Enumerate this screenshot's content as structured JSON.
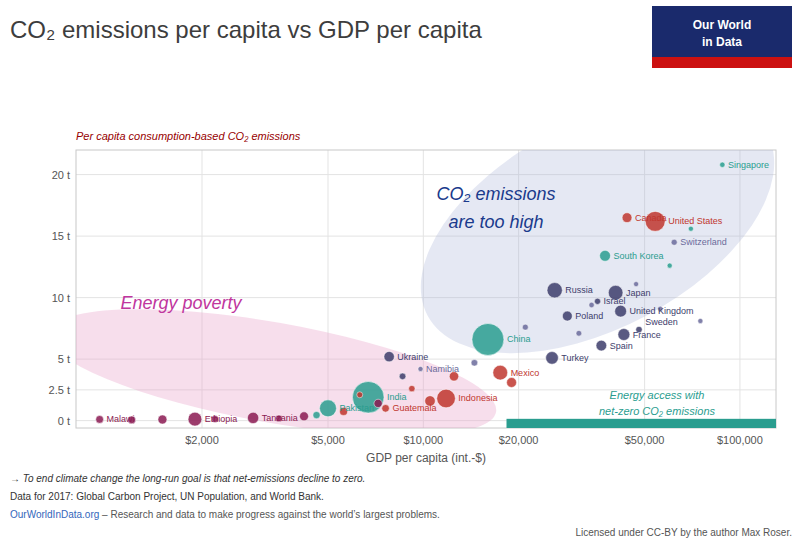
{
  "chart_data": {
    "type": "scatter",
    "title": "CO₂ emissions per capita vs GDP per capita",
    "x_label": "GDP per capita (int.-$)",
    "y_label": "Per capita consumption-based CO₂ emissions",
    "annotations": [
      "Energy poverty",
      "CO₂ emissions",
      "are too high",
      "Energy access with",
      "net-zero CO₂ emissions",
      "Our World",
      "in Data",
      "→ To end climate change the long-run goal is that net-emissions decline to zero.",
      "Data for 2017: Global Carbon Project, UN Population, and World Bank.",
      "OurWorldInData.org",
      " – Research and data to make progress against the world’s largest problems.",
      "Licensed under CC-BY by the author Max Roser."
    ],
    "log": "x",
    "grid": true,
    "xlim": [
      800,
      130000
    ],
    "ylim": [
      -0.6,
      22.0
    ],
    "xticks": [
      {
        "value": 2000,
        "label": "$2,000"
      },
      {
        "value": 5000,
        "label": "$5,000"
      },
      {
        "value": 10000,
        "label": "$10,000"
      },
      {
        "value": 20000,
        "label": "$20,000"
      },
      {
        "value": 50000,
        "label": "$50,000"
      },
      {
        "value": 100000,
        "label": "$100,000"
      }
    ],
    "yticks": [
      {
        "value": 0,
        "label": "0 t"
      },
      {
        "value": 2.5,
        "label": "2.5 t"
      },
      {
        "value": 5,
        "label": "5 t"
      },
      {
        "value": 10,
        "label": "10 t"
      },
      {
        "value": 15,
        "label": "15 t"
      },
      {
        "value": 20,
        "label": "20 t"
      }
    ],
    "x": [
      950,
      1900,
      2900,
      5000,
      6700,
      7800,
      9800,
      7600,
      11800,
      16000,
      17500,
      26000,
      25500,
      28500,
      35500,
      37500,
      40500,
      42000,
      43000,
      36500,
      48000,
      62000,
      44000,
      54000,
      88000,
      3500,
      4200,
      4600,
      5600,
      7200,
      9200,
      10500,
      12500,
      14500,
      19000,
      21000,
      31000,
      34000,
      47000,
      56000,
      60000,
      70000,
      75000,
      1200,
      1500,
      2200,
      6300,
      8600
    ],
    "values": [
      0.1,
      0.12,
      0.22,
      1.0,
      1.9,
      5.2,
      4.2,
      1.0,
      1.8,
      6.6,
      3.9,
      10.6,
      5.1,
      8.5,
      9.7,
      13.4,
      10.4,
      8.9,
      7.0,
      6.1,
      7.4,
      14.5,
      16.5,
      16.2,
      20.8,
      0.18,
      0.35,
      0.45,
      0.75,
      1.4,
      2.6,
      1.6,
      3.6,
      4.7,
      3.1,
      7.6,
      7.1,
      9.4,
      11.1,
      9.1,
      12.6,
      15.6,
      8.1,
      0.06,
      0.09,
      0.13,
      2.1,
      3.6
    ],
    "sizes": [
      18,
      105,
      57,
      197,
      1339,
      44,
      2.5,
      17,
      264,
      1390,
      129,
      145,
      80,
      38,
      9,
      51,
      127,
      66,
      67,
      47,
      10,
      8.5,
      37,
      326,
      5.6,
      12,
      28,
      15,
      20,
      22,
      10,
      45,
      32,
      11,
      38,
      8,
      7,
      6,
      5,
      4,
      3,
      4,
      3,
      18,
      28,
      13,
      8,
      11
    ],
    "colors": [
      "#8B1A52",
      "#8B1A52",
      "#8B1A52",
      "#2a9d8f",
      "#2a9d8f",
      "#3d3d6b",
      "#6b6b9b",
      "#c0362e",
      "#c0362e",
      "#2a9d8f",
      "#c0362e",
      "#3d3d6b",
      "#3d3d6b",
      "#3d3d6b",
      "#3d3d6b",
      "#2a9d8f",
      "#3d3d6b",
      "#3d3d6b",
      "#3d3d6b",
      "#3d3d6b",
      "#3d3d6b",
      "#6b6b9b",
      "#c0362e",
      "#c0362e",
      "#2a9d8f",
      "#8B1A52",
      "#8B1A52",
      "#2a9d8f",
      "#c0362e",
      "#8B1A52",
      "#c0362e",
      "#c0362e",
      "#c0362e",
      "#6b6b9b",
      "#c0362e",
      "#6b6b9b",
      "#6b6b9b",
      "#6b6b9b",
      "#6b6b9b",
      "#6b6b9b",
      "#2a9d8f",
      "#2a9d8f",
      "#6b6b9b",
      "#8B1A52",
      "#8B1A52",
      "#8B1A52",
      "#c0362e",
      "#3d3d6b"
    ],
    "labels": [
      "Malawi",
      "Ethiopia",
      "Tanzania",
      "Pakistan",
      "India",
      "Ukraine",
      "Namibia",
      "Guatemala",
      "Indonesia",
      "China",
      "Mexico",
      "Russia",
      "Turkey",
      "Poland",
      "Israel",
      "South Korea",
      "Japan",
      "United Kingdom",
      "France",
      "Spain",
      "Sweden",
      "Switzerland",
      "Canada",
      "United States",
      "Singapore",
      null,
      null,
      null,
      null,
      null,
      null,
      null,
      null,
      null,
      null,
      null,
      null,
      null,
      null,
      null,
      null,
      null,
      null,
      null,
      null,
      null,
      null,
      null
    ]
  }
}
